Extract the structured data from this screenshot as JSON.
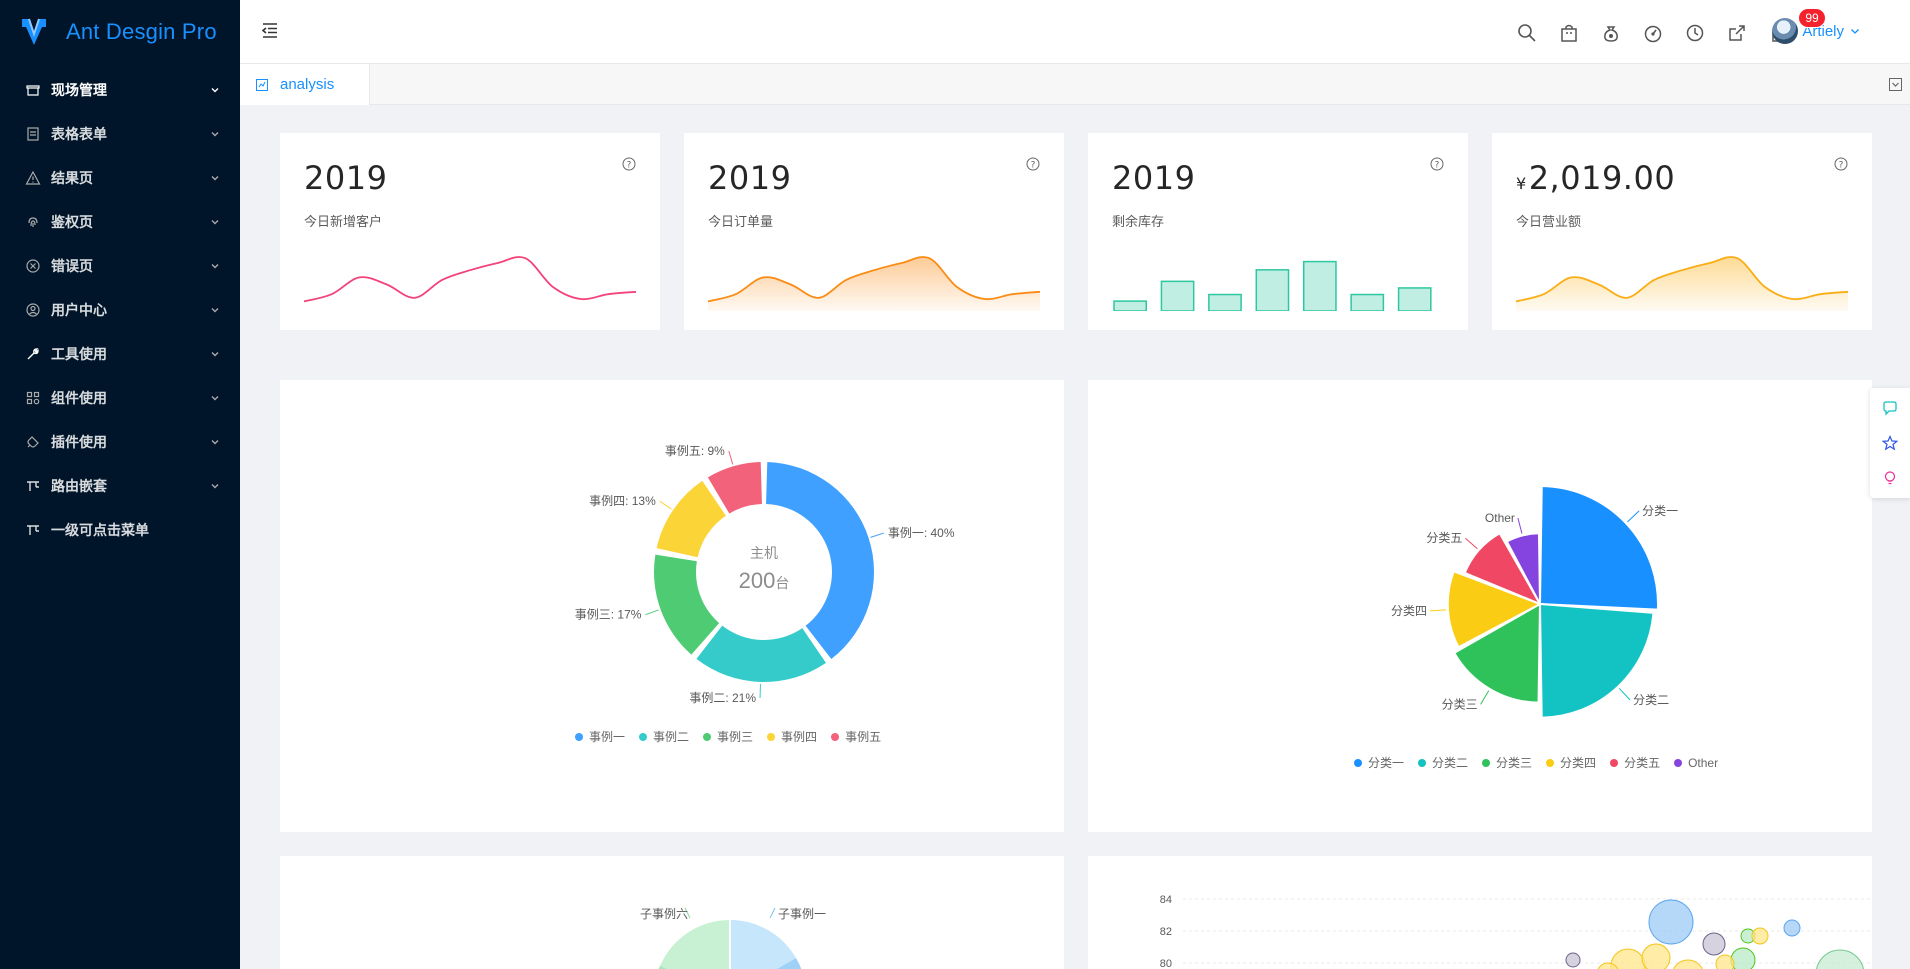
{
  "app": {
    "title": "Ant Desgin Pro"
  },
  "sidebar": {
    "items": [
      {
        "label": "现场管理",
        "icon": "shop-icon"
      },
      {
        "label": "表格表单",
        "icon": "form-icon"
      },
      {
        "label": "结果页",
        "icon": "warning-icon"
      },
      {
        "label": "鉴权页",
        "icon": "fingerprint-icon"
      },
      {
        "label": "错误页",
        "icon": "close-circle-icon"
      },
      {
        "label": "用户中心",
        "icon": "user-icon"
      },
      {
        "label": "工具使用",
        "icon": "tool-icon"
      },
      {
        "label": "组件使用",
        "icon": "appstore-icon"
      },
      {
        "label": "插件使用",
        "icon": "plugin-icon"
      },
      {
        "label": "路由嵌套",
        "icon": "route-icon"
      },
      {
        "label": "一级可点击菜单",
        "icon": "route-icon"
      }
    ]
  },
  "header": {
    "user": {
      "name": "Artiely",
      "badge": "99"
    },
    "icons": [
      "search-icon",
      "shopping-icon",
      "money-bag-icon",
      "dashboard-icon",
      "clock-icon",
      "export-icon",
      "lock-icon"
    ]
  },
  "tabs": [
    {
      "label": "analysis"
    }
  ],
  "stats": [
    {
      "value": "2019",
      "label": "今日新增客户",
      "currency": ""
    },
    {
      "value": "2019",
      "label": "今日订单量",
      "currency": ""
    },
    {
      "value": "2019",
      "label": "剩余库存",
      "currency": ""
    },
    {
      "value": "2,019.00",
      "label": "今日营业额",
      "currency": "¥"
    }
  ],
  "colors": {
    "primary": "#1890ff",
    "sidebar": "#001529",
    "pink": "#f2437a",
    "orange": "#fa8c16",
    "teal": "#2ec7a0",
    "gold": "#faad14"
  },
  "chart_data": [
    {
      "type": "pie",
      "title": "",
      "center_title": "主机",
      "center_value": "200",
      "center_unit": "台",
      "labels": [
        "事例一",
        "事例二",
        "事例三",
        "事例四",
        "事例五"
      ],
      "values": [
        40,
        21,
        17,
        13,
        9
      ],
      "callouts": [
        "事例一: 40%",
        "事例二: 21%",
        "事例三: 17%",
        "事例四: 13%",
        "事例五: 9%"
      ],
      "colors": [
        "#3fa0ff",
        "#36cbcb",
        "#4ecb73",
        "#fbd437",
        "#f2637b"
      ],
      "legend_position": "bottom"
    },
    {
      "type": "pie",
      "subtype": "rose",
      "title": "",
      "labels": [
        "分类一",
        "分类二",
        "分类三",
        "分类四",
        "分类五",
        "Other"
      ],
      "values": [
        27,
        25,
        18,
        15,
        10,
        5
      ],
      "colors": [
        "#1890ff",
        "#13c2c2",
        "#2fc25b",
        "#facc14",
        "#f04864",
        "#8543e0"
      ],
      "legend_position": "bottom"
    },
    {
      "type": "pie",
      "subtype": "sunburst",
      "title": "",
      "visible_labels": [
        "子事例六",
        "子事例一"
      ]
    },
    {
      "type": "scatter",
      "subtype": "bubble",
      "title": "",
      "y_ticks": [
        "84",
        "82",
        "80"
      ]
    }
  ],
  "sparks": {
    "customers": [
      8,
      14,
      28,
      22,
      11,
      26,
      34,
      40,
      44,
      20,
      10,
      14,
      16
    ],
    "orders": [
      8,
      14,
      28,
      22,
      11,
      26,
      34,
      40,
      44,
      20,
      10,
      14,
      16
    ],
    "inventory": [
      6,
      18,
      10,
      25,
      30,
      10,
      14
    ],
    "revenue": [
      8,
      14,
      28,
      22,
      11,
      26,
      34,
      40,
      44,
      20,
      10,
      14,
      16
    ]
  }
}
